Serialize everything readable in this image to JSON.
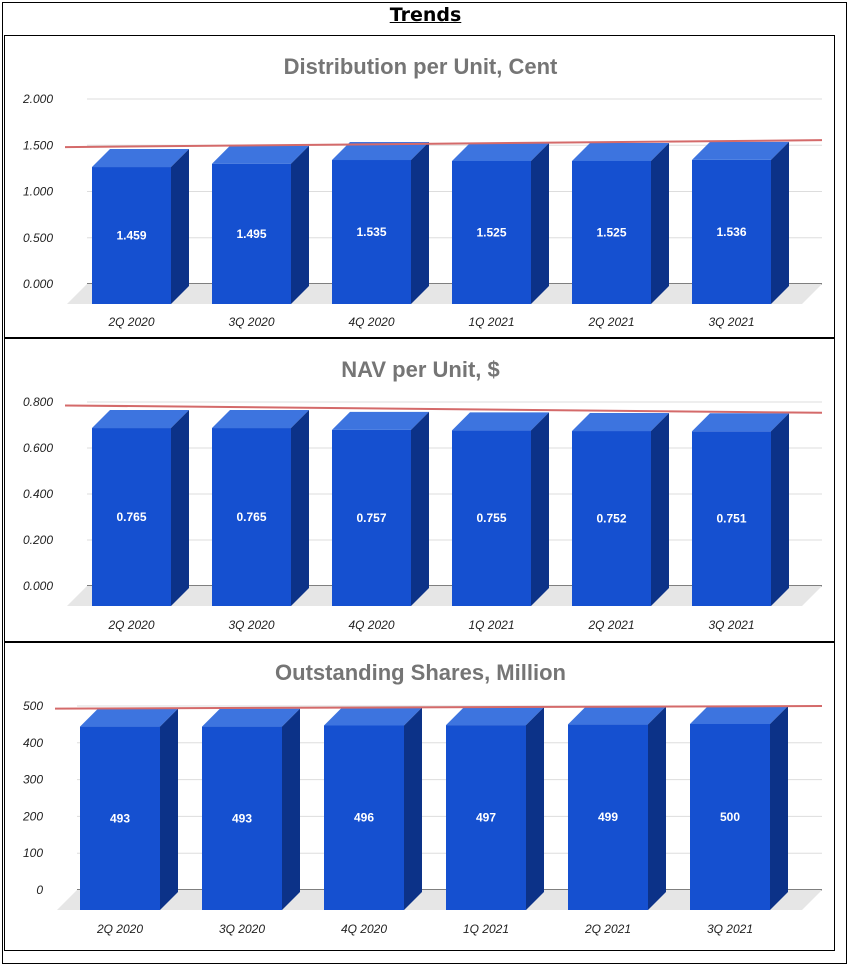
{
  "page": {
    "title": "Trends"
  },
  "chart_data": [
    {
      "type": "bar",
      "title": "Distribution per Unit, Cent",
      "xlabel": "",
      "ylabel": "",
      "categories": [
        "2Q 2020",
        "3Q 2020",
        "4Q 2020",
        "1Q 2021",
        "2Q 2021",
        "3Q 2021"
      ],
      "values": [
        1.459,
        1.495,
        1.535,
        1.525,
        1.525,
        1.536
      ],
      "value_labels": [
        "1.459",
        "1.495",
        "1.535",
        "1.525",
        "1.525",
        "1.536"
      ],
      "ylim": [
        0,
        2
      ],
      "yticks": [
        0,
        0.5,
        1,
        1.5,
        2
      ],
      "ytick_labels": [
        "0.000",
        "0.500",
        "1.000",
        "1.500",
        "2.000"
      ],
      "trendline": [
        1.48,
        1.555
      ],
      "grid": true,
      "legend": "none",
      "bar_color": "#1550d0",
      "trend_color": "#d46a6a"
    },
    {
      "type": "bar",
      "title": "NAV per Unit, $",
      "xlabel": "",
      "ylabel": "",
      "categories": [
        "2Q 2020",
        "3Q 2020",
        "4Q 2020",
        "1Q 2021",
        "2Q 2021",
        "3Q 2021"
      ],
      "values": [
        0.765,
        0.765,
        0.757,
        0.755,
        0.752,
        0.751
      ],
      "value_labels": [
        "0.765",
        "0.765",
        "0.757",
        "0.755",
        "0.752",
        "0.751"
      ],
      "ylim": [
        0,
        0.8
      ],
      "yticks": [
        0,
        0.2,
        0.4,
        0.6,
        0.8
      ],
      "ytick_labels": [
        "0.000",
        "0.200",
        "0.400",
        "0.600",
        "0.800"
      ],
      "trendline": [
        0.785,
        0.753
      ],
      "grid": true,
      "legend": "none",
      "bar_color": "#1550d0",
      "trend_color": "#d46a6a"
    },
    {
      "type": "bar",
      "title": "Outstanding Shares, Million",
      "xlabel": "",
      "ylabel": "",
      "categories": [
        "2Q 2020",
        "3Q 2020",
        "4Q 2020",
        "1Q 2021",
        "2Q 2021",
        "3Q 2021"
      ],
      "values": [
        493,
        493,
        496,
        497,
        499,
        500
      ],
      "value_labels": [
        "493",
        "493",
        "496",
        "497",
        "499",
        "500"
      ],
      "ylim": [
        0,
        500
      ],
      "yticks": [
        0,
        100,
        200,
        300,
        400,
        500
      ],
      "ytick_labels": [
        "0",
        "100",
        "200",
        "300",
        "400",
        "500"
      ],
      "trendline": [
        493,
        500
      ],
      "grid": true,
      "legend": "none",
      "bar_color": "#1550d0",
      "trend_color": "#d46a6a"
    }
  ]
}
